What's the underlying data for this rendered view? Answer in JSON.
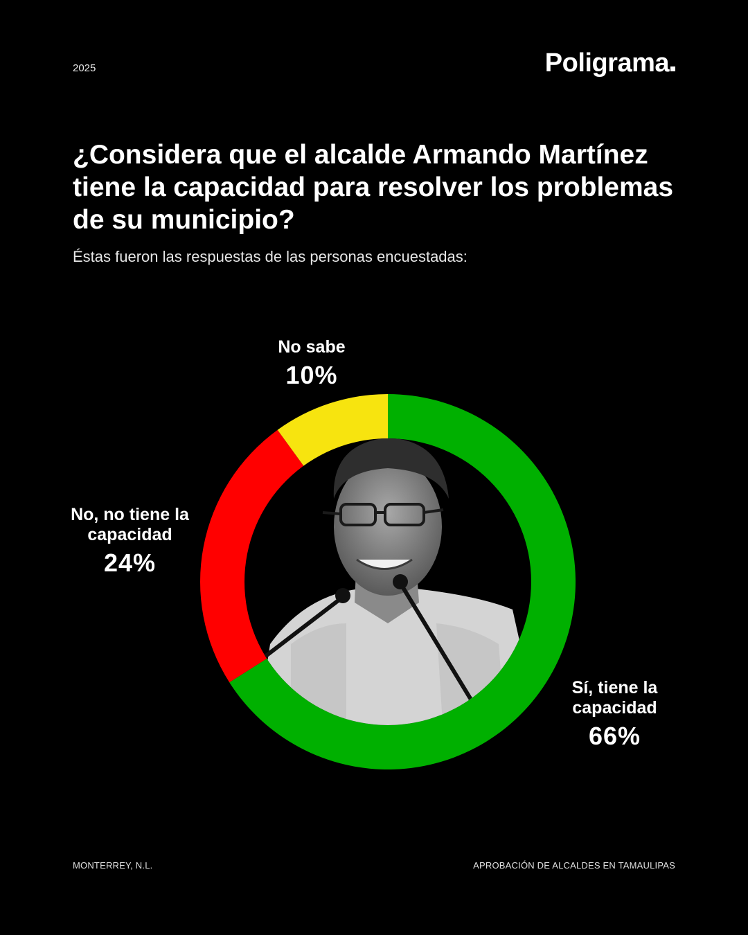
{
  "header": {
    "year": "2025",
    "brand": "Poligrama"
  },
  "title": "¿Considera que el alcalde Armando Martínez tiene la capacidad para resolver los problemas de su municipio?",
  "subtitle": "Éstas fueron las respuestas de las personas encuestadas:",
  "chart_data": {
    "type": "pie",
    "style": "donut",
    "categories": [
      "Sí, tiene la capacidad",
      "No, no tiene la capacidad",
      "No sabe"
    ],
    "values": [
      66,
      24,
      10
    ],
    "value_labels": [
      "66%",
      "24%",
      "10%"
    ],
    "colors": [
      "#00b000",
      "#ff0000",
      "#f7e40f"
    ],
    "center_image": "portrait-photo-grayscale"
  },
  "labels": {
    "no_sabe": {
      "name": "No sabe",
      "pct": "10%"
    },
    "no": {
      "name": "No, no tiene la capacidad",
      "pct": "24%"
    },
    "si": {
      "name": "Sí, tiene la capacidad",
      "pct": "66%"
    }
  },
  "footer": {
    "left": "MONTERREY, N.L.",
    "right": "APROBACIÓN DE ALCALDES EN TAMAULIPAS"
  }
}
